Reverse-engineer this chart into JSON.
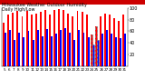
{
  "title": "Milwaukee Weather Outdoor Humidity",
  "subtitle": "Daily High/Low",
  "high_values": [
    75,
    88,
    92,
    95,
    85,
    95,
    88,
    90,
    93,
    96,
    88,
    96,
    98,
    96,
    90,
    85,
    95,
    93,
    88,
    55,
    68,
    86,
    90,
    88,
    82,
    78,
    88
  ],
  "low_values": [
    58,
    62,
    45,
    58,
    50,
    60,
    45,
    62,
    52,
    64,
    52,
    56,
    62,
    66,
    58,
    45,
    62,
    58,
    50,
    38,
    45,
    56,
    62,
    56,
    50,
    48,
    56
  ],
  "bar_color_high": "#ff0000",
  "bar_color_low": "#0000ff",
  "background_color": "#ffffff",
  "plot_bg_color": "#ffffff",
  "ylim": [
    0,
    100
  ],
  "ylabel_fontsize": 3.5,
  "xlabel_fontsize": 3.0,
  "title_fontsize": 3.5,
  "legend_fontsize": 3.5,
  "x_labels": [
    "5",
    "6",
    "7",
    "8",
    "9",
    "10",
    "11",
    "12",
    "13",
    "14",
    "15",
    "16",
    "17",
    "18",
    "19",
    "20",
    "21",
    "22",
    "23",
    "24",
    "25",
    "26",
    "27",
    "28",
    "29",
    "30",
    "31"
  ],
  "dashed_bar_indices": [
    19,
    20
  ],
  "yticks": [
    20,
    40,
    60,
    80,
    100
  ],
  "bar_width": 0.38,
  "top_strip_color": "#cc0000"
}
